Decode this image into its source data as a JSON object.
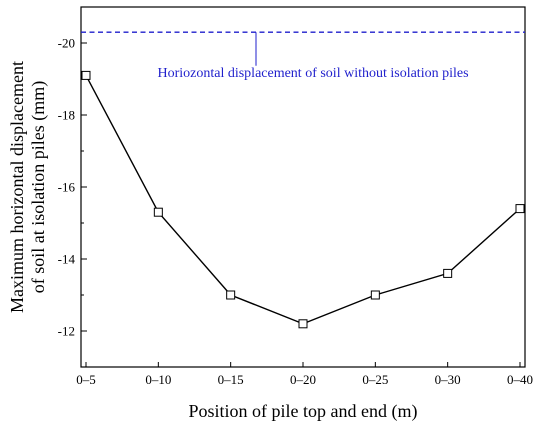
{
  "chart_data": {
    "type": "line",
    "categories": [
      "0–5",
      "0–10",
      "0–15",
      "0–20",
      "0–25",
      "0–30",
      "0–40"
    ],
    "series": [
      {
        "values": [
          -19.1,
          -15.3,
          -13.0,
          -12.2,
          -13.0,
          -13.6,
          -15.4
        ]
      }
    ],
    "reference_line": {
      "value": -20.3,
      "label": "Horiozontal displacement of soil without isolation piles",
      "style": "dashed",
      "color": "#1f1fcc"
    },
    "xlabel": "Position of pile top and end (m)",
    "ylabel_line1": "Maximum horizontal displacement",
    "ylabel_line2": "of soil at isolation piles (mm)",
    "ylim": [
      -11,
      -21
    ],
    "y_ticks": [
      -12,
      -14,
      -16,
      -18,
      -20
    ],
    "y_tick_labels": [
      "-12",
      "-14",
      "-16",
      "-18",
      "-20"
    ],
    "marker": "open-square",
    "grid": false,
    "line_color": "#000000"
  }
}
